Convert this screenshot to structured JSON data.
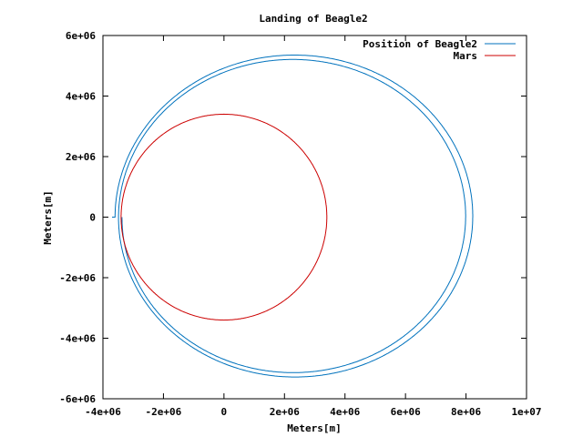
{
  "chart_data": {
    "type": "line",
    "title": "Landing of Beagle2",
    "xlabel": "Meters[m]",
    "ylabel": "Meters[m]",
    "xlim": [
      -4000000,
      10000000
    ],
    "ylim": [
      -6000000,
      6000000
    ],
    "xticks": [
      -4000000,
      -2000000,
      0,
      2000000,
      4000000,
      6000000,
      8000000,
      10000000
    ],
    "yticks": [
      -6000000,
      -4000000,
      -2000000,
      0,
      2000000,
      4000000,
      6000000
    ],
    "xtick_labels": [
      "-4e+06",
      "-2e+06",
      "0",
      "2e+06",
      "4e+06",
      "6e+06",
      "8e+06",
      "1e+07"
    ],
    "ytick_labels": [
      "-6e+06",
      "-4e+06",
      "-2e+06",
      "0",
      "2e+06",
      "4e+06",
      "6e+06"
    ],
    "grid": false,
    "legend_position": "top-right",
    "series": [
      {
        "name": "Position of Beagle2",
        "color": "#0072bd",
        "spiral": {
          "start_radius": 3700000,
          "end_radius": 3400000,
          "turns": 2,
          "center_start": [
            2370000,
            0
          ],
          "center_end": [
            2250000,
            0
          ],
          "semi_major_start": 5970000,
          "semi_major_end": 5620000,
          "semi_minor_start": 5390000,
          "semi_minor_end": 5100000
        }
      },
      {
        "name": "Mars",
        "color": "#cc0000",
        "circle": {
          "center": [
            0,
            0
          ],
          "radius": 3400000
        }
      }
    ]
  }
}
